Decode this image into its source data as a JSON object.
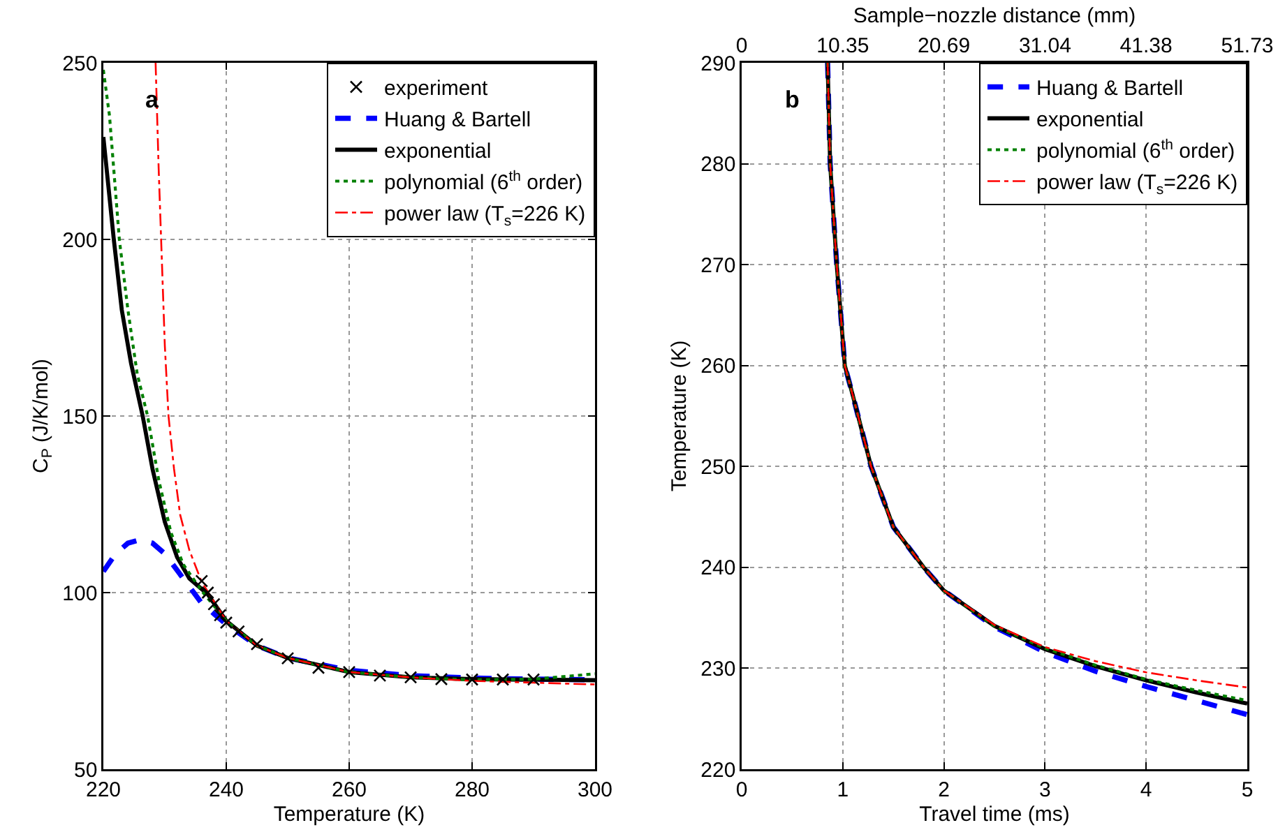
{
  "chart_data": [
    {
      "type": "line",
      "xlabel": "Temperature (K)",
      "ylabel": "C$_{P}$ (J/K/mol)",
      "annotations": [
        "a"
      ],
      "xlim": [
        220,
        300
      ],
      "xticks": [
        220,
        240,
        260,
        280,
        300
      ],
      "ylim": [
        50,
        250
      ],
      "yticks": [
        50,
        100,
        150,
        200,
        250
      ],
      "grid": true,
      "legend": "top right",
      "series": [
        {
          "name": "experiment",
          "type": "scatter",
          "marker": "cross",
          "color": "#000000",
          "x": [
            236,
            237,
            238,
            239,
            240,
            242,
            245,
            250,
            255,
            260,
            265,
            270,
            275,
            280,
            285,
            290
          ],
          "values": [
            103.3,
            100,
            96.7,
            93.6,
            91.5,
            89,
            85.4,
            81.4,
            78.7,
            77.5,
            76.5,
            76,
            75.5,
            75.4,
            75.4,
            75.4
          ]
        },
        {
          "name": "Huang & Bartell",
          "line_style": "dashed",
          "color": "#0000ff",
          "x": [
            220,
            222,
            224,
            226,
            228,
            230,
            233,
            236,
            238,
            240,
            245,
            250,
            260,
            270,
            280,
            290,
            300
          ],
          "values": [
            106,
            111,
            114,
            115,
            114,
            111,
            104,
            97,
            94,
            91,
            85,
            81.5,
            78,
            76.5,
            75.8,
            75.5,
            75.3
          ]
        },
        {
          "name": "exponential",
          "line_style": "solid",
          "color": "#000000",
          "x": [
            220,
            221.7,
            223,
            224.5,
            226.4,
            228,
            230,
            232,
            234,
            237,
            240,
            245,
            250,
            260,
            270,
            280,
            300
          ],
          "values": [
            229,
            200,
            180,
            165,
            150,
            135,
            120,
            110,
            104,
            99.5,
            92,
            85,
            81.5,
            77.5,
            76,
            75.5,
            75.2
          ]
        },
        {
          "name": "polynomial (6$^{th}$ order)",
          "line_style": "dotted",
          "color": "#008000",
          "x": [
            220,
            221,
            222.6,
            224,
            225.5,
            227.2,
            229,
            231,
            233,
            236,
            240,
            245,
            250,
            260,
            270,
            280,
            290,
            300
          ],
          "values": [
            248,
            235,
            200,
            180,
            162,
            150,
            132,
            117,
            108,
            100.5,
            92,
            85,
            81.5,
            77.5,
            76,
            75.3,
            75.5,
            77
          ]
        },
        {
          "name": "power law (T$_{s}$=226 K)",
          "line_style": "dashdot",
          "color": "#ff0000",
          "x": [
            228.5,
            229,
            229.4,
            230,
            230.6,
            231.5,
            232.5,
            234,
            236,
            240,
            245,
            250,
            260,
            270,
            280,
            290,
            300
          ],
          "values": [
            250,
            220,
            200,
            170,
            150,
            135,
            122,
            112,
            103,
            92,
            85,
            81.5,
            77.5,
            76,
            75,
            74.5,
            74
          ]
        }
      ]
    },
    {
      "type": "line",
      "xlabel": "Travel time (ms)",
      "ylabel": "Temperature (K)",
      "x2label": "Sample−nozzle distance (mm)",
      "annotations": [
        "b"
      ],
      "xlim": [
        0,
        5
      ],
      "xticks": [
        0,
        1,
        2,
        3,
        4,
        5
      ],
      "x2lim": [
        0,
        51.73
      ],
      "x2ticks": [
        0,
        10.35,
        20.69,
        31.04,
        41.38,
        51.73
      ],
      "ylim": [
        220,
        290
      ],
      "yticks": [
        220,
        230,
        240,
        250,
        260,
        270,
        280,
        290
      ],
      "grid": true,
      "legend": "top right",
      "series": [
        {
          "name": "Huang & Bartell",
          "line_style": "dashed",
          "color": "#0000ff",
          "x": [
            0.85,
            0.875,
            0.94,
            1.02,
            1.1,
            1.28,
            1.5,
            1.8,
            2,
            2.5,
            3,
            3.5,
            4,
            4.5,
            5
          ],
          "values": [
            290,
            280,
            270,
            260,
            257,
            250,
            244,
            240,
            237.7,
            234.1,
            231.6,
            229.7,
            228.2,
            226.8,
            225.4
          ]
        },
        {
          "name": "exponential",
          "line_style": "solid",
          "color": "#000000",
          "x": [
            0.85,
            0.875,
            0.94,
            1.02,
            1.1,
            1.28,
            1.5,
            1.8,
            2,
            2.5,
            3,
            3.5,
            4,
            4.5,
            5
          ],
          "values": [
            290,
            280,
            270,
            260,
            257,
            250,
            244,
            240,
            237.7,
            234.2,
            231.9,
            230.2,
            228.8,
            227.6,
            226.5
          ]
        },
        {
          "name": "polynomial (6$^{th}$ order)",
          "line_style": "dotted",
          "color": "#008000",
          "x": [
            0.85,
            0.875,
            0.94,
            1.02,
            1.1,
            1.28,
            1.5,
            1.8,
            2,
            2.5,
            3,
            3.5,
            4,
            4.5,
            5
          ],
          "values": [
            290,
            280,
            270,
            260,
            257,
            250,
            244,
            240,
            237.7,
            234.2,
            232,
            230.3,
            228.9,
            227.8,
            226.8
          ]
        },
        {
          "name": "power law (T$_{s}$=226 K)",
          "line_style": "dashdot",
          "color": "#ff0000",
          "x": [
            0.85,
            0.875,
            0.94,
            1.02,
            1.1,
            1.28,
            1.5,
            1.8,
            2,
            2.5,
            3,
            3.5,
            4,
            4.5,
            5
          ],
          "values": [
            290,
            280,
            270,
            260,
            257,
            250,
            244,
            240,
            237.7,
            234.3,
            232.1,
            230.7,
            229.6,
            228.8,
            228.1
          ]
        }
      ]
    }
  ]
}
